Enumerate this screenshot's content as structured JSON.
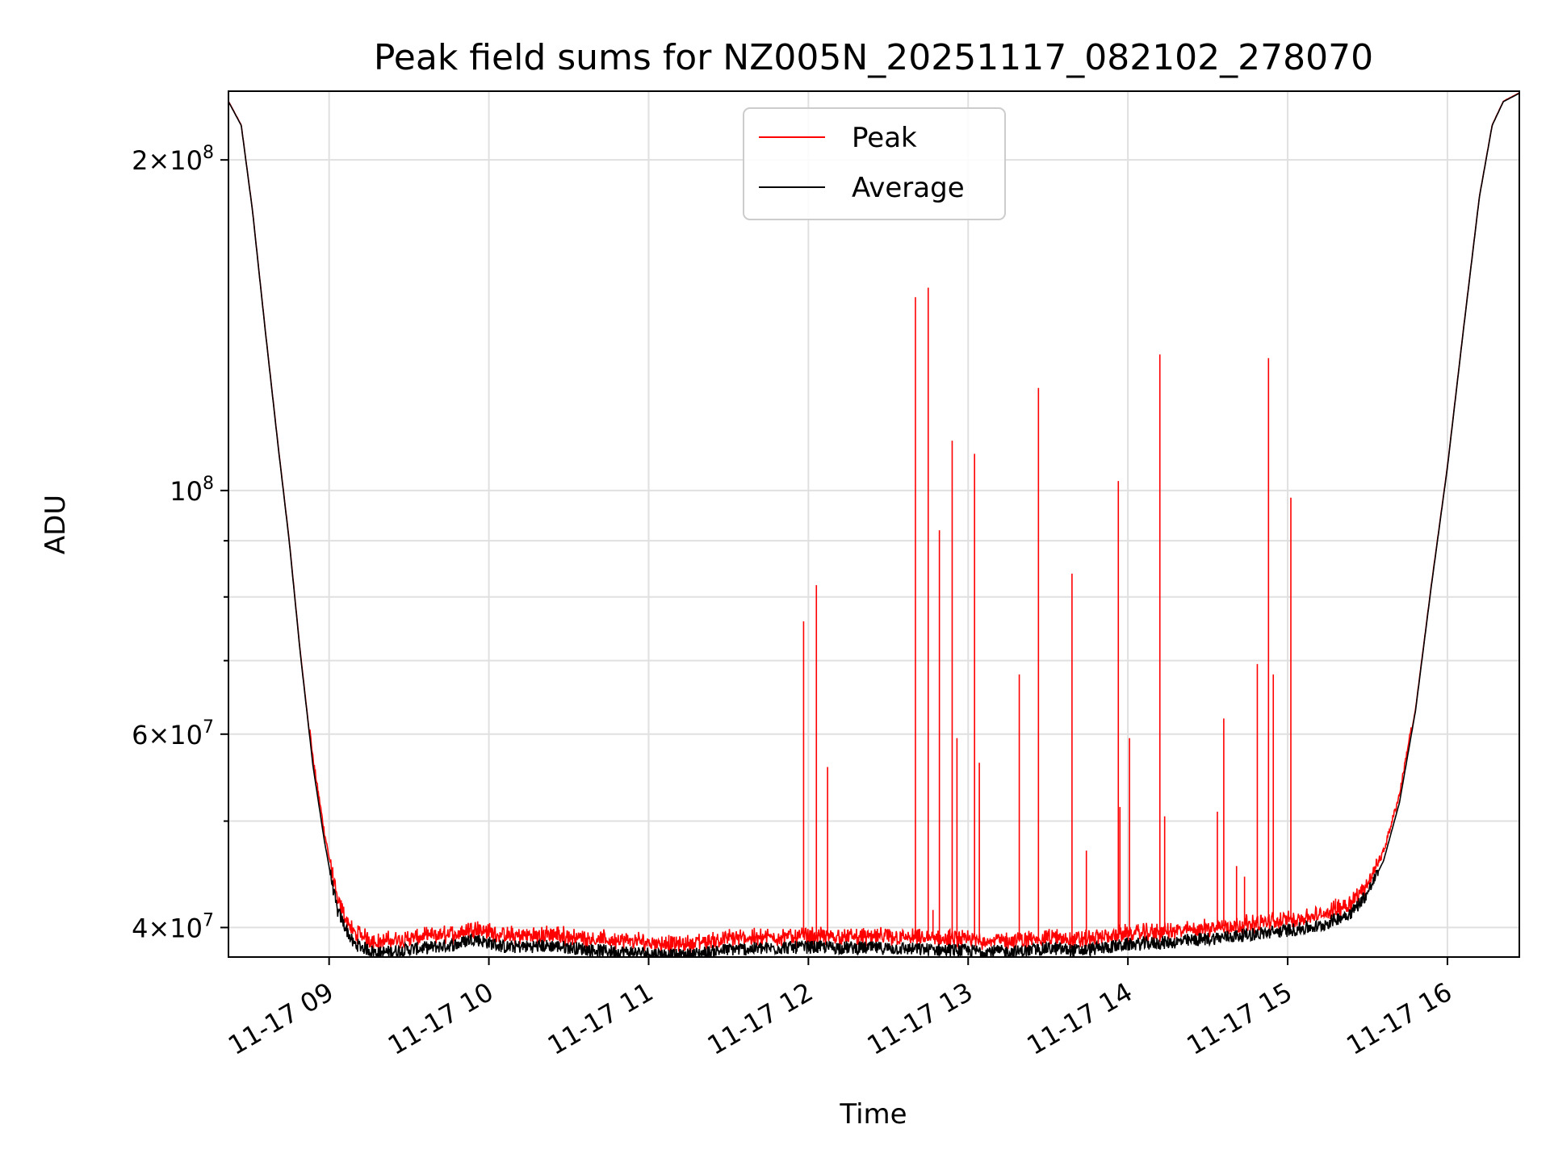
{
  "chart_data": {
    "type": "line",
    "title": "Peak field sums for NZ005N_20251117_082102_278070",
    "xlabel": "Time",
    "ylabel": "ADU",
    "yscale": "log",
    "grid": true,
    "legend_position": "top-center",
    "xlim_hours": [
      8.37,
      16.45
    ],
    "ylim": [
      37600000,
      231000000
    ],
    "x_ticks": [
      {
        "hour": 9,
        "label": "11-17 09"
      },
      {
        "hour": 10,
        "label": "11-17 10"
      },
      {
        "hour": 11,
        "label": "11-17 11"
      },
      {
        "hour": 12,
        "label": "11-17 12"
      },
      {
        "hour": 13,
        "label": "11-17 13"
      },
      {
        "hour": 14,
        "label": "11-17 14"
      },
      {
        "hour": 15,
        "label": "11-17 15"
      },
      {
        "hour": 16,
        "label": "11-17 16"
      }
    ],
    "y_major_ticks": [
      {
        "value": 40000000,
        "base": "4",
        "sup": "7"
      },
      {
        "value": 60000000,
        "base": "6",
        "sup": "7"
      },
      {
        "value": 100000000,
        "base": "",
        "sup": "8"
      },
      {
        "value": 200000000,
        "base": "2",
        "sup": "8"
      }
    ],
    "y_minor_ticks": [
      50000000,
      70000000,
      80000000,
      90000000
    ],
    "series": [
      {
        "name": "Peak",
        "color": "#ff0000",
        "baseline_offset": 900000,
        "spikes": [
          {
            "hour": 11.97,
            "value": 76000000
          },
          {
            "hour": 12.05,
            "value": 82000000
          },
          {
            "hour": 12.12,
            "value": 56000000
          },
          {
            "hour": 12.67,
            "value": 150000000
          },
          {
            "hour": 12.75,
            "value": 153000000
          },
          {
            "hour": 12.78,
            "value": 41500000
          },
          {
            "hour": 12.82,
            "value": 92000000
          },
          {
            "hour": 12.9,
            "value": 111000000
          },
          {
            "hour": 12.93,
            "value": 59500000
          },
          {
            "hour": 13.04,
            "value": 108000000
          },
          {
            "hour": 13.07,
            "value": 56500000
          },
          {
            "hour": 13.32,
            "value": 68000000
          },
          {
            "hour": 13.44,
            "value": 124000000
          },
          {
            "hour": 13.65,
            "value": 84000000
          },
          {
            "hour": 13.74,
            "value": 47000000
          },
          {
            "hour": 13.94,
            "value": 102000000
          },
          {
            "hour": 13.95,
            "value": 51500000
          },
          {
            "hour": 14.01,
            "value": 59500000
          },
          {
            "hour": 14.2,
            "value": 133000000
          },
          {
            "hour": 14.23,
            "value": 50500000
          },
          {
            "hour": 14.56,
            "value": 51000000
          },
          {
            "hour": 14.6,
            "value": 62000000
          },
          {
            "hour": 14.68,
            "value": 45500000
          },
          {
            "hour": 14.73,
            "value": 44500000
          },
          {
            "hour": 14.81,
            "value": 69500000
          },
          {
            "hour": 14.88,
            "value": 132000000
          },
          {
            "hour": 14.91,
            "value": 68000000
          },
          {
            "hour": 15.02,
            "value": 98500000
          },
          {
            "hour": 15.3,
            "value": 42500000
          }
        ]
      },
      {
        "name": "Average",
        "color": "#000000",
        "profile": [
          [
            8.37,
            226000000
          ],
          [
            8.45,
            215000000
          ],
          [
            8.52,
            180000000
          ],
          [
            8.6,
            140000000
          ],
          [
            8.68,
            110000000
          ],
          [
            8.75,
            90000000
          ],
          [
            8.82,
            71000000
          ],
          [
            8.9,
            56000000
          ],
          [
            8.97,
            48000000
          ],
          [
            9.05,
            41500000
          ],
          [
            9.15,
            38700000
          ],
          [
            9.3,
            37900000
          ],
          [
            9.5,
            38200000
          ],
          [
            9.8,
            38600000
          ],
          [
            9.9,
            39100000
          ],
          [
            10.1,
            38400000
          ],
          [
            10.4,
            38500000
          ],
          [
            10.7,
            38100000
          ],
          [
            11.0,
            37900000
          ],
          [
            11.2,
            37700000
          ],
          [
            11.5,
            38200000
          ],
          [
            12.0,
            38400000
          ],
          [
            12.5,
            38300000
          ],
          [
            13.0,
            38100000
          ],
          [
            13.3,
            38000000
          ],
          [
            13.5,
            38300000
          ],
          [
            13.7,
            38100000
          ],
          [
            14.0,
            38600000
          ],
          [
            14.3,
            38800000
          ],
          [
            14.6,
            39200000
          ],
          [
            14.9,
            39600000
          ],
          [
            15.2,
            40100000
          ],
          [
            15.4,
            41300000
          ],
          [
            15.5,
            43000000
          ],
          [
            15.6,
            46000000
          ],
          [
            15.7,
            52000000
          ],
          [
            15.8,
            63000000
          ],
          [
            15.9,
            82000000
          ],
          [
            16.0,
            105000000
          ],
          [
            16.1,
            140000000
          ],
          [
            16.2,
            185000000
          ],
          [
            16.28,
            215000000
          ],
          [
            16.35,
            226000000
          ],
          [
            16.45,
            230000000
          ]
        ]
      }
    ]
  }
}
